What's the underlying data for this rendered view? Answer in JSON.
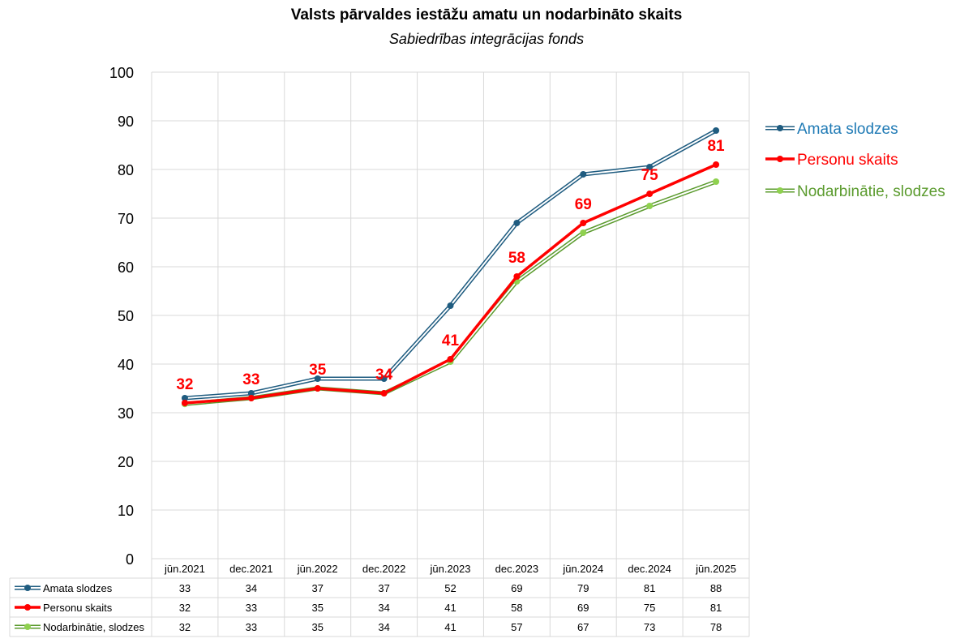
{
  "chart_data": {
    "type": "line",
    "title": "Valsts pārvaldes iestāžu amatu un nodarbināto skaits",
    "subtitle": "Sabiedrības integrācijas fonds",
    "categories": [
      "jūn.2021",
      "dec.2021",
      "jūn.2022",
      "dec.2022",
      "jūn.2023",
      "dec.2023",
      "jūn.2024",
      "dec.2024",
      "jūn.2025"
    ],
    "ylim": [
      0,
      100
    ],
    "yticks": [
      0,
      10,
      20,
      30,
      40,
      50,
      60,
      70,
      80,
      90,
      100
    ],
    "grid": true,
    "legend_position": "right",
    "data_table": true,
    "series": [
      {
        "name": "Amata slodzes",
        "color": "#1f5c80",
        "values": [
          33,
          34,
          37,
          37,
          52,
          69,
          79,
          81,
          88
        ],
        "plot_values": [
          33,
          34,
          37,
          37,
          52,
          69,
          79,
          80.5,
          88
        ],
        "data_labels": false
      },
      {
        "name": "Personu skaits",
        "color": "#ff0000",
        "values": [
          32,
          33,
          35,
          34,
          41,
          58,
          69,
          75,
          81
        ],
        "plot_values": [
          32,
          33,
          35,
          34,
          41,
          58,
          69,
          75,
          81
        ],
        "data_labels": true
      },
      {
        "name": "Nodarbinātie, slodzes",
        "color": "#5b9b2e",
        "values": [
          32,
          33,
          35,
          34,
          41,
          57,
          67,
          73,
          78
        ],
        "plot_values": [
          31.8,
          33,
          35,
          34,
          40.5,
          57,
          67,
          72.5,
          77.5
        ],
        "data_labels": false
      }
    ]
  }
}
